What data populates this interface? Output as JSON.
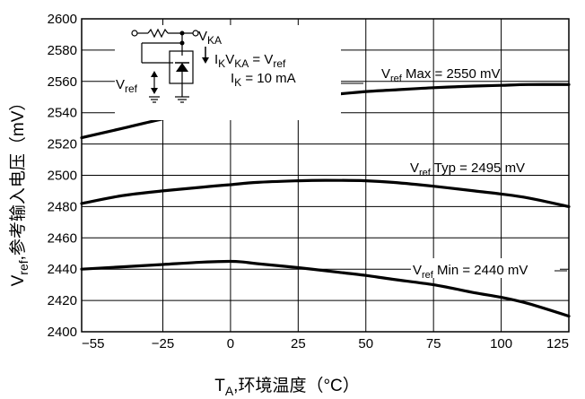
{
  "chart_data": {
    "type": "line",
    "xlabel_main": "T",
    "xlabel_sub": "A",
    "xlabel_rest": ",环境温度（°C）",
    "ylabel_main": "V",
    "ylabel_sub": "ref",
    "ylabel_rest": ",参考输入电压（mV）",
    "xlim": [
      -55,
      125
    ],
    "ylim": [
      2400,
      2600
    ],
    "xticks": [
      -55,
      -25,
      0,
      25,
      50,
      75,
      100,
      125
    ],
    "yticks": [
      2400,
      2420,
      2440,
      2460,
      2480,
      2500,
      2520,
      2540,
      2560,
      2580,
      2600
    ],
    "grid": true,
    "series": [
      {
        "name": "Vref Max = 2550 mV",
        "x": [
          -55,
          -40,
          -25,
          -10,
          0,
          10,
          25,
          40,
          50,
          60,
          75,
          90,
          100,
          110,
          125
        ],
        "y": [
          2524,
          2530,
          2536,
          2541,
          2544,
          2547,
          2550,
          2552,
          2553.5,
          2554.5,
          2556,
          2557,
          2557.5,
          2558,
          2558
        ]
      },
      {
        "name": "Vref Typ = 2495 mV",
        "x": [
          -55,
          -40,
          -25,
          -10,
          0,
          10,
          25,
          35,
          50,
          60,
          75,
          90,
          100,
          110,
          125
        ],
        "y": [
          2482,
          2487,
          2490,
          2492.5,
          2494,
          2495.5,
          2496.5,
          2496.8,
          2496.5,
          2495.5,
          2493,
          2490,
          2488,
          2485.5,
          2480
        ]
      },
      {
        "name": "Vref Min = 2440 mV",
        "x": [
          -55,
          -40,
          -25,
          -10,
          0,
          5,
          10,
          25,
          40,
          50,
          60,
          75,
          90,
          100,
          110,
          125
        ],
        "y": [
          2440,
          2441.5,
          2443,
          2444.5,
          2445,
          2444.5,
          2443.5,
          2441,
          2438,
          2436,
          2433.5,
          2430,
          2425,
          2422,
          2418,
          2410
        ]
      }
    ],
    "curve_labels": [
      {
        "main": "V",
        "sub": "ref",
        "rest": " Max = 2550 mV"
      },
      {
        "main": "V",
        "sub": "ref",
        "rest": " Typ = 2495 mV"
      },
      {
        "main": "V",
        "sub": "ref",
        "rest": " Min = 2440 mV"
      }
    ],
    "circuit_labels": {
      "vka_main": "V",
      "vka_sub": "KA",
      "ik_main": "I",
      "ik_sub": "K",
      "ik_rest": " = 10 mA",
      "cond_main": "V",
      "cond_sub": "KA",
      "cond_rest": " = V",
      "cond_sub2": "ref",
      "vref_main": "V",
      "vref_sub": "ref"
    }
  }
}
